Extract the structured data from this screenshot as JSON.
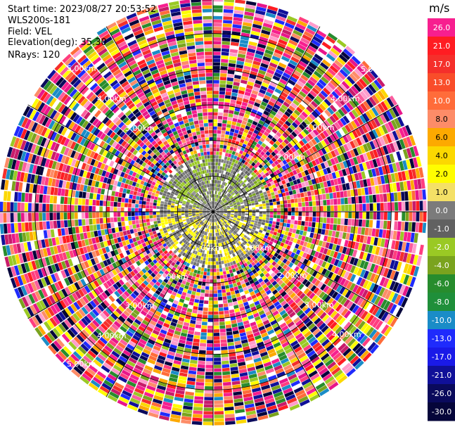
{
  "info": {
    "start_time": "Start time: 2023/08/27 20:53:52",
    "instrument": "WLS200s-181",
    "field": "Field: VEL",
    "elevation": "Elevation(deg): 35.30",
    "nrays": "NRays: 120"
  },
  "chart_data": {
    "type": "heatmap",
    "projection": "polar",
    "rays": 120,
    "max_range_km": 6.0,
    "range_ring_labels": [
      "1.00km",
      "2.00km",
      "3.00km",
      "4.00km",
      "5.00km"
    ],
    "colorbar": {
      "unit": "m/s",
      "ticks": [
        "26.0",
        "21.0",
        "17.0",
        "13.0",
        "10.0",
        "8.0",
        "6.0",
        "4.0",
        "2.0",
        "1.0",
        "0.0",
        "-1.0",
        "-2.0",
        "-4.0",
        "-6.0",
        "-8.0",
        "-10.0",
        "-13.0",
        "-17.0",
        "-21.0",
        "-26.0",
        "-30.0"
      ],
      "colors": [
        "#f71f8f",
        "#ff1c22",
        "#f52f2b",
        "#f94d2a",
        "#ff6c3a",
        "#fd8c68",
        "#fda900",
        "#fcd800",
        "#fffd00",
        "#f4e066",
        "#7b7b7b",
        "#616161",
        "#9ac924",
        "#7aa31e",
        "#278c2d",
        "#1f8f3a",
        "#1a8cc7",
        "#1f2bfc",
        "#1a1ae8",
        "#101099",
        "#0a0a5c",
        "#05053a"
      ]
    }
  }
}
